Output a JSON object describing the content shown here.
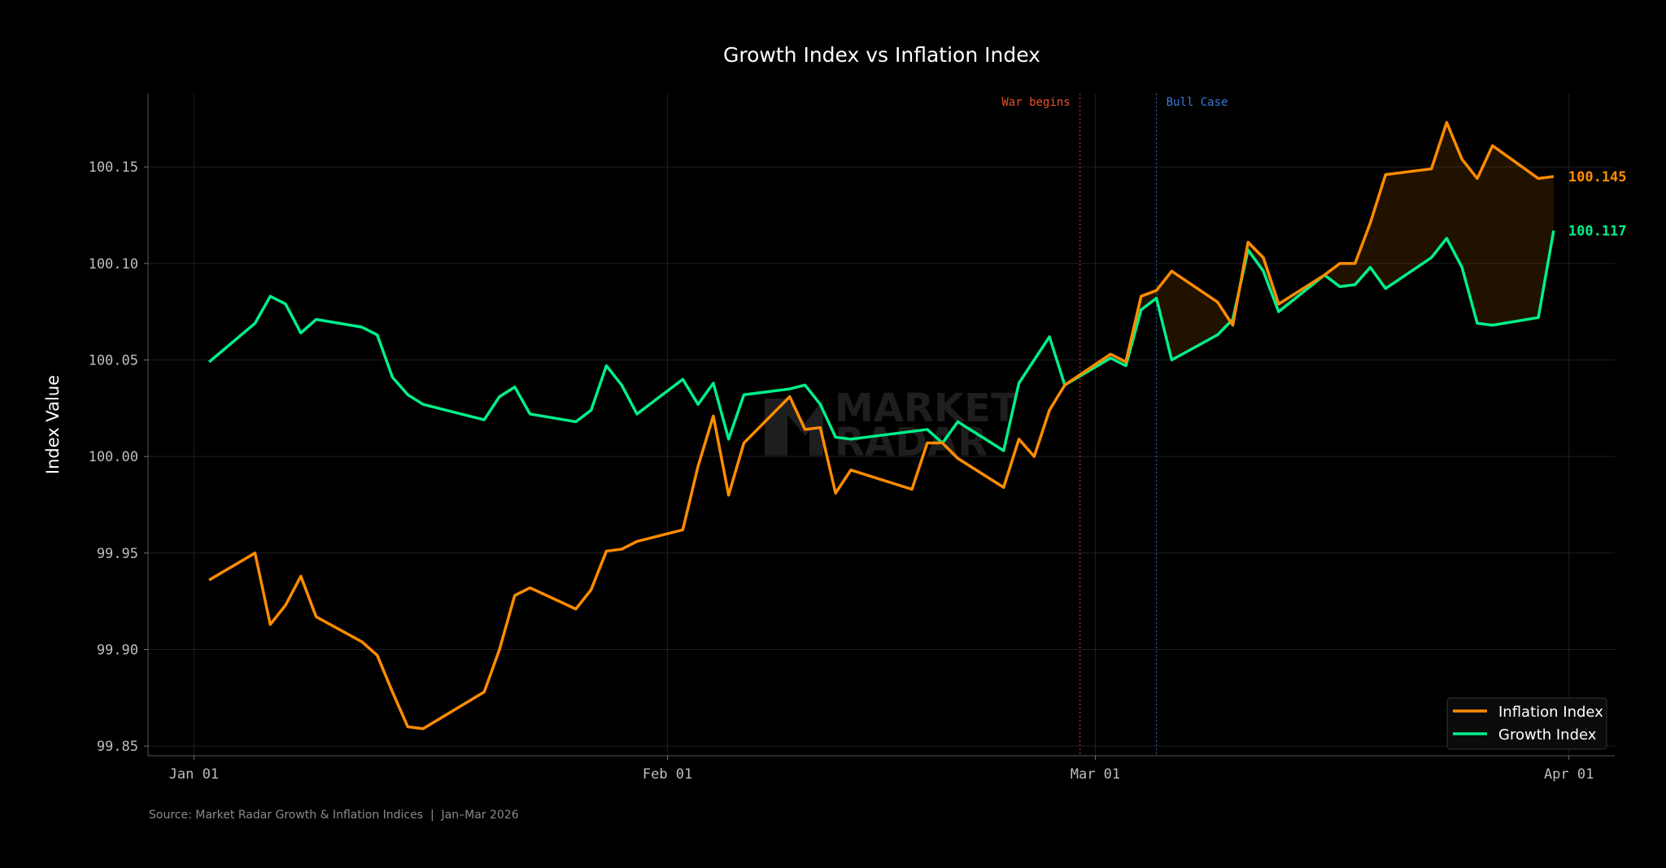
{
  "chart_data": {
    "type": "line",
    "title": "Growth Index vs Inflation Index",
    "xlabel": "",
    "ylabel": "Index Value",
    "ylim": [
      99.845,
      100.188
    ],
    "xlim": [
      "2025-12-29",
      "2026-04-04"
    ],
    "y_ticks": [
      "99.85",
      "99.90",
      "99.95",
      "100.00",
      "100.05",
      "100.10",
      "100.15"
    ],
    "x_ticks": [
      {
        "date": "2026-01-01",
        "label": "Jan 01"
      },
      {
        "date": "2026-02-01",
        "label": "Feb 01"
      },
      {
        "date": "2026-03-01",
        "label": "Mar 01"
      },
      {
        "date": "2026-04-01",
        "label": "Apr 01"
      }
    ],
    "grid": true,
    "legend_placement": "bottom-right",
    "x": [
      "2026-01-02",
      "2026-01-05",
      "2026-01-06",
      "2026-01-07",
      "2026-01-08",
      "2026-01-09",
      "2026-01-12",
      "2026-01-13",
      "2026-01-14",
      "2026-01-15",
      "2026-01-16",
      "2026-01-20",
      "2026-01-21",
      "2026-01-22",
      "2026-01-23",
      "2026-01-26",
      "2026-01-27",
      "2026-01-28",
      "2026-01-29",
      "2026-01-30",
      "2026-02-02",
      "2026-02-03",
      "2026-02-04",
      "2026-02-05",
      "2026-02-06",
      "2026-02-09",
      "2026-02-10",
      "2026-02-11",
      "2026-02-12",
      "2026-02-13",
      "2026-02-17",
      "2026-02-18",
      "2026-02-19",
      "2026-02-20",
      "2026-02-23",
      "2026-02-24",
      "2026-02-25",
      "2026-02-26",
      "2026-02-27",
      "2026-03-02",
      "2026-03-03",
      "2026-03-04",
      "2026-03-05",
      "2026-03-06",
      "2026-03-09",
      "2026-03-10",
      "2026-03-11",
      "2026-03-12",
      "2026-03-13",
      "2026-03-16",
      "2026-03-17",
      "2026-03-18",
      "2026-03-19",
      "2026-03-20",
      "2026-03-23",
      "2026-03-24",
      "2026-03-25",
      "2026-03-26",
      "2026-03-27",
      "2026-03-30",
      "2026-03-31"
    ],
    "series": [
      {
        "name": "Inflation Index",
        "color": "#ff8c00",
        "values": [
          99.936,
          99.95,
          99.913,
          99.923,
          99.938,
          99.917,
          99.904,
          99.897,
          99.878,
          99.86,
          99.859,
          99.878,
          99.9,
          99.928,
          99.932,
          99.921,
          99.931,
          99.951,
          99.952,
          99.956,
          99.962,
          99.995,
          100.021,
          99.98,
          100.007,
          100.031,
          100.014,
          100.015,
          99.981,
          99.993,
          99.983,
          100.007,
          100.007,
          99.999,
          99.984,
          100.009,
          100.0,
          100.024,
          100.037,
          100.053,
          100.049,
          100.083,
          100.086,
          100.096,
          100.08,
          100.068,
          100.111,
          100.103,
          100.079,
          100.094,
          100.1,
          100.1,
          100.121,
          100.146,
          100.149,
          100.173,
          100.154,
          100.144,
          100.161,
          100.144,
          100.145
        ]
      },
      {
        "name": "Growth Index",
        "color": "#00f08a",
        "values": [
          100.049,
          100.069,
          100.083,
          100.079,
          100.064,
          100.071,
          100.067,
          100.063,
          100.041,
          100.032,
          100.027,
          100.019,
          100.031,
          100.036,
          100.022,
          100.018,
          100.024,
          100.047,
          100.037,
          100.022,
          100.04,
          100.027,
          100.038,
          100.009,
          100.032,
          100.035,
          100.037,
          100.027,
          100.01,
          100.009,
          100.013,
          100.014,
          100.007,
          100.018,
          100.003,
          100.038,
          100.05,
          100.062,
          100.037,
          100.051,
          100.047,
          100.076,
          100.082,
          100.05,
          100.063,
          100.071,
          100.107,
          100.096,
          100.075,
          100.094,
          100.088,
          100.089,
          100.098,
          100.087,
          100.103,
          100.113,
          100.098,
          100.069,
          100.068,
          100.072,
          100.117
        ]
      }
    ],
    "end_labels": [
      "100.145",
      "100.117"
    ],
    "fill_between": {
      "color": "#ff8c00",
      "where": "Inflation Index above Growth Index"
    },
    "annotations": [
      {
        "date": "2026-02-28",
        "label": "War begins",
        "color": "#e8502a"
      },
      {
        "date": "2026-03-05",
        "label": "Bull Case",
        "color": "#3a7bd5"
      }
    ],
    "source": "Source: Market Radar Growth & Inflation Indices  |  Jan–Mar 2026",
    "watermark": "MARKET RADAR"
  }
}
